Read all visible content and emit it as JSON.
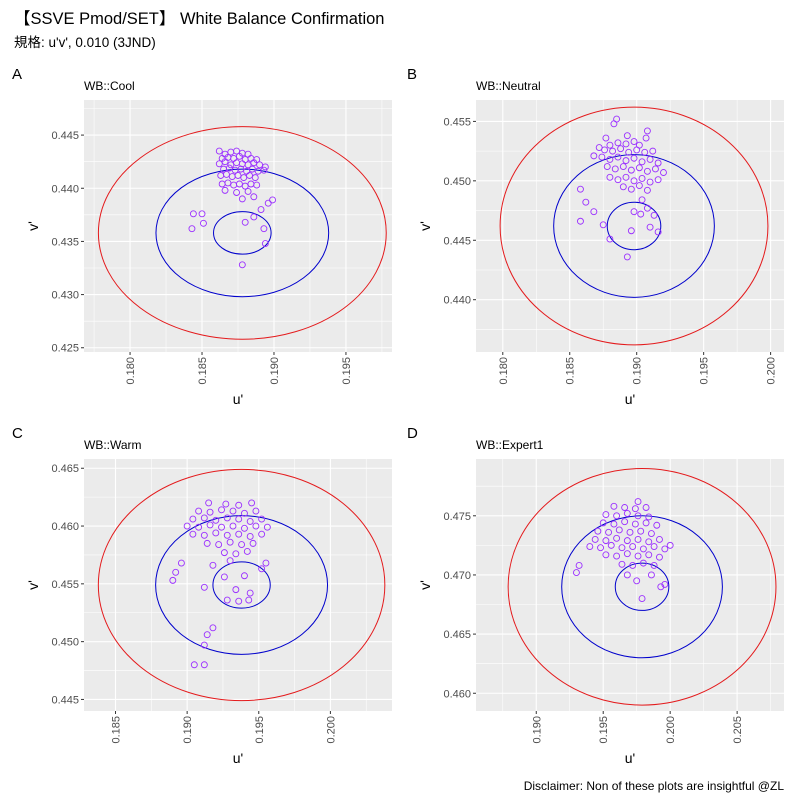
{
  "title": "【SSVE Pmod/SET】 White Balance Confirmation",
  "subtitle": "規格: u'v', 0.010 (3JND)",
  "caption": "Disclaimer: Non of these plots are insightful @ZL",
  "colors": {
    "panel_bg": "#ebebeb",
    "grid": "#ffffff",
    "outer_ring": "#e41a1c",
    "inner_rings": "#0000cc",
    "points": "#9b30ff"
  },
  "chart_data": [
    {
      "type": "scatter",
      "tag": "A",
      "title": "WB::Cool",
      "xlabel": "u'",
      "ylabel": "v'",
      "xlim": [
        0.1768,
        0.1982
      ],
      "ylim": [
        0.4246,
        0.4483
      ],
      "xticks": [
        "0.180",
        "0.185",
        "0.190",
        "0.195"
      ],
      "yticks": [
        "0.425",
        "0.430",
        "0.435",
        "0.440",
        "0.445"
      ],
      "target": [
        0.1878,
        0.4358
      ],
      "ring_radii": [
        0.002,
        0.006,
        0.01
      ],
      "points": [
        [
          0.1862,
          0.4435
        ],
        [
          0.1866,
          0.4432
        ],
        [
          0.187,
          0.4434
        ],
        [
          0.1874,
          0.4435
        ],
        [
          0.1878,
          0.4433
        ],
        [
          0.1882,
          0.4432
        ],
        [
          0.1864,
          0.4428
        ],
        [
          0.1868,
          0.4429
        ],
        [
          0.1872,
          0.4428
        ],
        [
          0.1876,
          0.443
        ],
        [
          0.188,
          0.4427
        ],
        [
          0.1884,
          0.4428
        ],
        [
          0.1888,
          0.4427
        ],
        [
          0.1862,
          0.4423
        ],
        [
          0.1866,
          0.4425
        ],
        [
          0.187,
          0.4422
        ],
        [
          0.1874,
          0.4424
        ],
        [
          0.1878,
          0.4423
        ],
        [
          0.1882,
          0.4422
        ],
        [
          0.1886,
          0.4424
        ],
        [
          0.189,
          0.4422
        ],
        [
          0.1894,
          0.442
        ],
        [
          0.1865,
          0.4418
        ],
        [
          0.1869,
          0.4419
        ],
        [
          0.1873,
          0.4417
        ],
        [
          0.1877,
          0.4418
        ],
        [
          0.1881,
          0.4416
        ],
        [
          0.1885,
          0.4418
        ],
        [
          0.1889,
          0.4416
        ],
        [
          0.1893,
          0.4417
        ],
        [
          0.1863,
          0.4412
        ],
        [
          0.1867,
          0.4413
        ],
        [
          0.1871,
          0.4411
        ],
        [
          0.1875,
          0.4412
        ],
        [
          0.1879,
          0.441
        ],
        [
          0.1883,
          0.4412
        ],
        [
          0.1887,
          0.441
        ],
        [
          0.1864,
          0.4404
        ],
        [
          0.1868,
          0.4405
        ],
        [
          0.1872,
          0.4403
        ],
        [
          0.1876,
          0.4404
        ],
        [
          0.188,
          0.4402
        ],
        [
          0.1884,
          0.4404
        ],
        [
          0.1888,
          0.4403
        ],
        [
          0.1866,
          0.4398
        ],
        [
          0.1874,
          0.4396
        ],
        [
          0.1882,
          0.4397
        ],
        [
          0.1878,
          0.439
        ],
        [
          0.1886,
          0.4392
        ],
        [
          0.1899,
          0.4389
        ],
        [
          0.1896,
          0.4386
        ],
        [
          0.1891,
          0.438
        ],
        [
          0.1844,
          0.4376
        ],
        [
          0.185,
          0.4376
        ],
        [
          0.1886,
          0.4373
        ],
        [
          0.188,
          0.4368
        ],
        [
          0.1851,
          0.4367
        ],
        [
          0.1843,
          0.4362
        ],
        [
          0.1893,
          0.4362
        ],
        [
          0.1894,
          0.4348
        ],
        [
          0.1878,
          0.4328
        ]
      ]
    },
    {
      "type": "scatter",
      "tag": "B",
      "title": "WB::Neutral",
      "xlabel": "u'",
      "ylabel": "v'",
      "xlim": [
        0.178,
        0.201
      ],
      "ylim": [
        0.4356,
        0.4568
      ],
      "xticks": [
        "0.180",
        "0.185",
        "0.190",
        "0.195",
        "0.200"
      ],
      "yticks": [
        "0.440",
        "0.445",
        "0.450",
        "0.455"
      ],
      "target": [
        0.1898,
        0.4462
      ],
      "ring_radii": [
        0.002,
        0.006,
        0.01
      ],
      "points": [
        [
          0.1885,
          0.4552
        ],
        [
          0.1883,
          0.4548
        ],
        [
          0.1908,
          0.4542
        ],
        [
          0.1907,
          0.4536
        ],
        [
          0.1877,
          0.4536
        ],
        [
          0.1893,
          0.4538
        ],
        [
          0.188,
          0.453
        ],
        [
          0.1886,
          0.4532
        ],
        [
          0.1892,
          0.4531
        ],
        [
          0.1898,
          0.4533
        ],
        [
          0.1902,
          0.453
        ],
        [
          0.1872,
          0.4528
        ],
        [
          0.1876,
          0.4526
        ],
        [
          0.1882,
          0.4525
        ],
        [
          0.1888,
          0.4527
        ],
        [
          0.1894,
          0.4524
        ],
        [
          0.19,
          0.4526
        ],
        [
          0.1906,
          0.4524
        ],
        [
          0.1912,
          0.4525
        ],
        [
          0.1868,
          0.4521
        ],
        [
          0.1874,
          0.452
        ],
        [
          0.188,
          0.4518
        ],
        [
          0.1886,
          0.452
        ],
        [
          0.1892,
          0.4517
        ],
        [
          0.1898,
          0.4519
        ],
        [
          0.1904,
          0.4516
        ],
        [
          0.191,
          0.4518
        ],
        [
          0.1916,
          0.4515
        ],
        [
          0.1878,
          0.4512
        ],
        [
          0.1884,
          0.451
        ],
        [
          0.189,
          0.4512
        ],
        [
          0.1896,
          0.4509
        ],
        [
          0.1902,
          0.4511
        ],
        [
          0.1908,
          0.4508
        ],
        [
          0.1914,
          0.451
        ],
        [
          0.192,
          0.4507
        ],
        [
          0.188,
          0.4503
        ],
        [
          0.1886,
          0.4501
        ],
        [
          0.1892,
          0.4503
        ],
        [
          0.1898,
          0.45
        ],
        [
          0.1904,
          0.4502
        ],
        [
          0.191,
          0.4499
        ],
        [
          0.1916,
          0.4501
        ],
        [
          0.189,
          0.4495
        ],
        [
          0.1896,
          0.4493
        ],
        [
          0.1902,
          0.4496
        ],
        [
          0.1908,
          0.4492
        ],
        [
          0.1858,
          0.4493
        ],
        [
          0.1904,
          0.4484
        ],
        [
          0.1862,
          0.4482
        ],
        [
          0.1908,
          0.4477
        ],
        [
          0.1898,
          0.4474
        ],
        [
          0.1868,
          0.4474
        ],
        [
          0.1903,
          0.4472
        ],
        [
          0.1913,
          0.4471
        ],
        [
          0.1858,
          0.4466
        ],
        [
          0.1875,
          0.4463
        ],
        [
          0.191,
          0.4461
        ],
        [
          0.1896,
          0.4458
        ],
        [
          0.1916,
          0.4457
        ],
        [
          0.188,
          0.4451
        ],
        [
          0.1893,
          0.4436
        ]
      ]
    },
    {
      "type": "scatter",
      "tag": "C",
      "title": "WB::Warm",
      "xlabel": "u'",
      "ylabel": "v'",
      "xlim": [
        0.1828,
        0.2043
      ],
      "ylim": [
        0.444,
        0.4658
      ],
      "xticks": [
        "0.185",
        "0.190",
        "0.195",
        "0.200"
      ],
      "yticks": [
        "0.445",
        "0.450",
        "0.455",
        "0.460",
        "0.465"
      ],
      "target": [
        0.1938,
        0.4549
      ],
      "ring_radii": [
        0.002,
        0.006,
        0.01
      ],
      "points": [
        [
          0.1915,
          0.462
        ],
        [
          0.1927,
          0.4619
        ],
        [
          0.1936,
          0.4618
        ],
        [
          0.1945,
          0.462
        ],
        [
          0.1908,
          0.4613
        ],
        [
          0.1916,
          0.4612
        ],
        [
          0.1924,
          0.4614
        ],
        [
          0.1932,
          0.4613
        ],
        [
          0.194,
          0.4611
        ],
        [
          0.1948,
          0.4613
        ],
        [
          0.1904,
          0.4606
        ],
        [
          0.1912,
          0.4607
        ],
        [
          0.192,
          0.4605
        ],
        [
          0.1928,
          0.4607
        ],
        [
          0.1936,
          0.4606
        ],
        [
          0.1944,
          0.4604
        ],
        [
          0.1952,
          0.4606
        ],
        [
          0.19,
          0.46
        ],
        [
          0.1908,
          0.4599
        ],
        [
          0.1916,
          0.4601
        ],
        [
          0.1924,
          0.4599
        ],
        [
          0.1932,
          0.46
        ],
        [
          0.194,
          0.4598
        ],
        [
          0.1948,
          0.46
        ],
        [
          0.1956,
          0.4599
        ],
        [
          0.1904,
          0.4593
        ],
        [
          0.1912,
          0.4592
        ],
        [
          0.192,
          0.4594
        ],
        [
          0.1928,
          0.4592
        ],
        [
          0.1936,
          0.4593
        ],
        [
          0.1944,
          0.4591
        ],
        [
          0.1952,
          0.4593
        ],
        [
          0.1914,
          0.4585
        ],
        [
          0.1922,
          0.4584
        ],
        [
          0.193,
          0.4586
        ],
        [
          0.1938,
          0.4584
        ],
        [
          0.1946,
          0.4585
        ],
        [
          0.1926,
          0.4577
        ],
        [
          0.1934,
          0.4576
        ],
        [
          0.1942,
          0.4578
        ],
        [
          0.1896,
          0.4568
        ],
        [
          0.193,
          0.457
        ],
        [
          0.1918,
          0.4566
        ],
        [
          0.1955,
          0.4568
        ],
        [
          0.1892,
          0.456
        ],
        [
          0.1952,
          0.4563
        ],
        [
          0.194,
          0.4557
        ],
        [
          0.189,
          0.4553
        ],
        [
          0.1926,
          0.4556
        ],
        [
          0.1912,
          0.4547
        ],
        [
          0.1934,
          0.4545
        ],
        [
          0.1944,
          0.4542
        ],
        [
          0.1928,
          0.4536
        ],
        [
          0.1936,
          0.4535
        ],
        [
          0.1943,
          0.4536
        ],
        [
          0.1918,
          0.4512
        ],
        [
          0.1914,
          0.4506
        ],
        [
          0.1912,
          0.4497
        ],
        [
          0.1912,
          0.448
        ],
        [
          0.1905,
          0.448
        ]
      ]
    },
    {
      "type": "scatter",
      "tag": "D",
      "title": "WB::Expert1",
      "xlabel": "u'",
      "ylabel": "v'",
      "xlim": [
        0.1855,
        0.2085
      ],
      "ylim": [
        0.4585,
        0.4798
      ],
      "xticks": [
        "0.190",
        "0.195",
        "0.200",
        "0.205"
      ],
      "yticks": [
        "0.460",
        "0.465",
        "0.470",
        "0.475"
      ],
      "target": [
        0.1979,
        0.469
      ],
      "ring_radii": [
        0.002,
        0.006,
        0.01
      ],
      "points": [
        [
          0.1976,
          0.4762
        ],
        [
          0.1958,
          0.4758
        ],
        [
          0.1966,
          0.4757
        ],
        [
          0.1974,
          0.4756
        ],
        [
          0.1982,
          0.4757
        ],
        [
          0.1952,
          0.4751
        ],
        [
          0.196,
          0.475
        ],
        [
          0.1968,
          0.4752
        ],
        [
          0.1976,
          0.475
        ],
        [
          0.1984,
          0.4749
        ],
        [
          0.195,
          0.4744
        ],
        [
          0.1958,
          0.4743
        ],
        [
          0.1966,
          0.4745
        ],
        [
          0.1974,
          0.4743
        ],
        [
          0.1982,
          0.4744
        ],
        [
          0.199,
          0.4742
        ],
        [
          0.1946,
          0.4737
        ],
        [
          0.1954,
          0.4736
        ],
        [
          0.1962,
          0.4738
        ],
        [
          0.197,
          0.4736
        ],
        [
          0.1978,
          0.4737
        ],
        [
          0.1986,
          0.4735
        ],
        [
          0.1944,
          0.473
        ],
        [
          0.1952,
          0.4729
        ],
        [
          0.196,
          0.4731
        ],
        [
          0.1968,
          0.4729
        ],
        [
          0.1976,
          0.473
        ],
        [
          0.1984,
          0.4728
        ],
        [
          0.1992,
          0.473
        ],
        [
          0.194,
          0.4724
        ],
        [
          0.1948,
          0.4723
        ],
        [
          0.1956,
          0.4725
        ],
        [
          0.1964,
          0.4723
        ],
        [
          0.1972,
          0.4724
        ],
        [
          0.198,
          0.4722
        ],
        [
          0.1988,
          0.4724
        ],
        [
          0.1996,
          0.4722
        ],
        [
          0.2,
          0.4725
        ],
        [
          0.1952,
          0.4717
        ],
        [
          0.196,
          0.4716
        ],
        [
          0.1968,
          0.4718
        ],
        [
          0.1976,
          0.4716
        ],
        [
          0.1984,
          0.4717
        ],
        [
          0.1992,
          0.4715
        ],
        [
          0.1964,
          0.4709
        ],
        [
          0.1972,
          0.4708
        ],
        [
          0.198,
          0.471
        ],
        [
          0.1988,
          0.4708
        ],
        [
          0.1932,
          0.4708
        ],
        [
          0.1968,
          0.47
        ],
        [
          0.1986,
          0.47
        ],
        [
          0.193,
          0.4702
        ],
        [
          0.1975,
          0.4695
        ],
        [
          0.1996,
          0.4692
        ],
        [
          0.1993,
          0.469
        ],
        [
          0.1979,
          0.468
        ]
      ]
    }
  ]
}
